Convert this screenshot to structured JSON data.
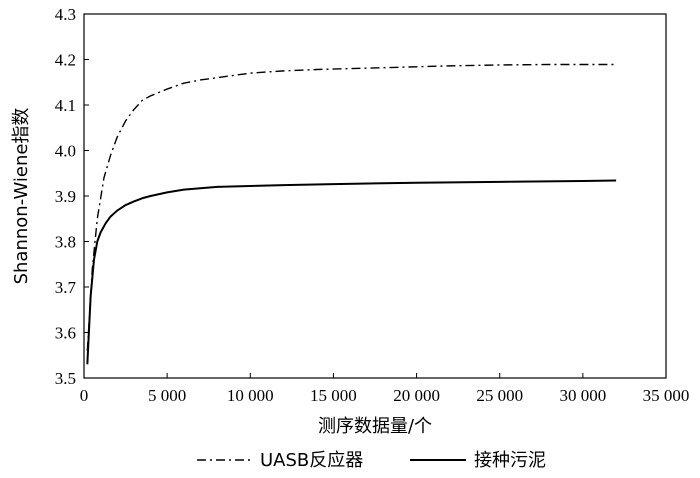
{
  "chart_data": {
    "type": "line",
    "xlabel": "测序数据量/个",
    "ylabel": "Shannon-Wiene指数",
    "xlim": [
      0,
      35000
    ],
    "ylim": [
      3.5,
      4.3
    ],
    "x_ticks": [
      0,
      5000,
      10000,
      15000,
      20000,
      25000,
      30000,
      35000
    ],
    "x_tick_labels": [
      "0",
      "5 000",
      "10 000",
      "15 000",
      "20 000",
      "25 000",
      "30 000",
      "35 000"
    ],
    "y_ticks": [
      3.5,
      3.6,
      3.7,
      3.8,
      3.9,
      4.0,
      4.1,
      4.2,
      4.3
    ],
    "y_tick_labels": [
      "3.5",
      "3.6",
      "3.7",
      "3.8",
      "3.9",
      "4.0",
      "4.1",
      "4.2",
      "4.3"
    ],
    "grid": false,
    "legend_position": "bottom",
    "series": [
      {
        "name": "UASB反应器",
        "style": "dash-dot",
        "color": "#000000",
        "x": [
          200,
          500,
          800,
          1200,
          1600,
          2000,
          2500,
          3000,
          3500,
          4000,
          5000,
          6000,
          7000,
          8000,
          9000,
          10000,
          12000,
          14000,
          16000,
          18000,
          20000,
          22000,
          25000,
          28000,
          30000,
          32000
        ],
        "y": [
          3.56,
          3.74,
          3.85,
          3.94,
          3.99,
          4.03,
          4.065,
          4.09,
          4.11,
          4.12,
          4.135,
          4.148,
          4.155,
          4.16,
          4.165,
          4.17,
          4.175,
          4.178,
          4.18,
          4.182,
          4.184,
          4.186,
          4.188,
          4.189,
          4.189,
          4.189
        ]
      },
      {
        "name": "接种污泥",
        "style": "solid",
        "color": "#000000",
        "x": [
          200,
          400,
          600,
          800,
          1000,
          1300,
          1600,
          2000,
          2500,
          3000,
          3500,
          4000,
          5000,
          6000,
          7000,
          8000,
          10000,
          12000,
          15000,
          18000,
          20000,
          25000,
          30000,
          32000
        ],
        "y": [
          3.53,
          3.68,
          3.76,
          3.8,
          3.82,
          3.84,
          3.855,
          3.868,
          3.88,
          3.888,
          3.895,
          3.9,
          3.908,
          3.914,
          3.917,
          3.92,
          3.922,
          3.924,
          3.926,
          3.928,
          3.929,
          3.931,
          3.933,
          3.934
        ]
      }
    ]
  }
}
